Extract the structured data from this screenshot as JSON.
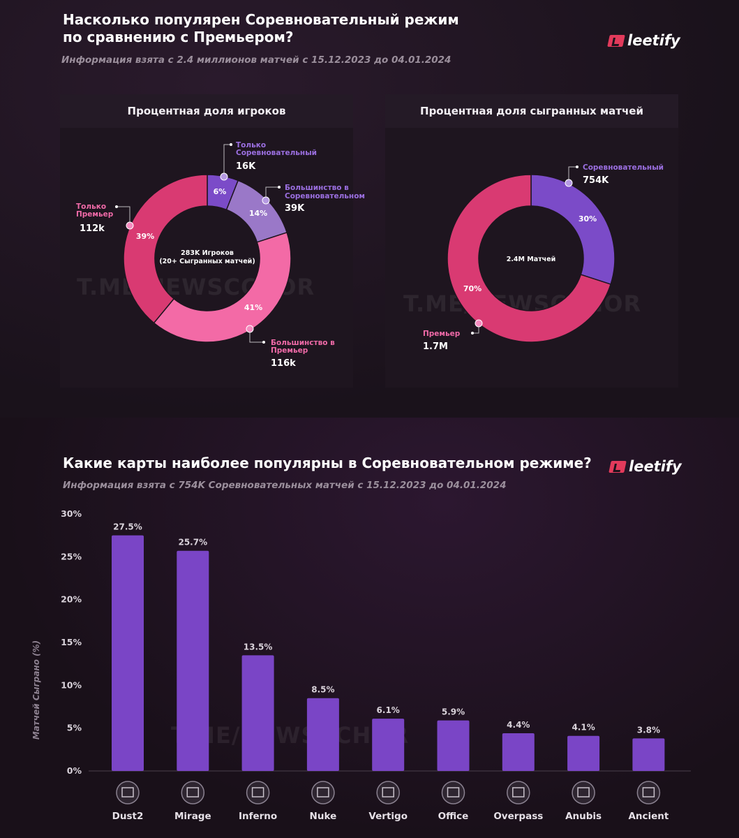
{
  "top": {
    "title_line1": "Насколько популярен Соревновательный режим",
    "title_line2": "по сравнению с Премьером?",
    "subtitle": "Информация взята с 2.4 миллионов матчей с 15.12.2023 до 04.01.2024",
    "logo": "leetify",
    "watermark": "T.ME/NEWSCCHOR"
  },
  "bottom": {
    "title": "Какие карты наиболее популярны в Соревновательном режиме?",
    "subtitle": "Информация взята с 754K Соревновательных матчей с 15.12.2023 до 04.01.2024",
    "logo": "leetify",
    "watermark": "T.ME/NEWSCCHOR"
  },
  "colors": {
    "purple": "#7b4bc8",
    "purple_light": "#9a78c8",
    "pink": "#e8457e",
    "pink_light": "#f36aa6",
    "pink_dark": "#c93063",
    "bar": "#7a45c6"
  },
  "chart_data": [
    {
      "type": "pie",
      "title": "Процентная доля игроков",
      "center_line1": "283K Игроков",
      "center_line2": "(20+ Сыгранных матчей)",
      "slices": [
        {
          "name": "Только Соревновательный",
          "name_line1": "Только",
          "name_line2": "Соревновательный",
          "percent": 6,
          "percent_label": "6%",
          "count": "16K",
          "color": "#7b4bc8"
        },
        {
          "name": "Большинство в Соревновательном",
          "name_line1": "Большинство в",
          "name_line2": "Соревновательном",
          "percent": 14,
          "percent_label": "14%",
          "count": "39K",
          "color": "#9a78c8"
        },
        {
          "name": "Большинство в Премьер",
          "name_line1": "Большинство в",
          "name_line2": "Премьер",
          "percent": 41,
          "percent_label": "41%",
          "count": "116k",
          "color": "#f36aa6"
        },
        {
          "name": "Только Премьер",
          "name_line1": "Только",
          "name_line2": "Премьер",
          "percent": 39,
          "percent_label": "39%",
          "count": "112k",
          "color": "#d93a72"
        }
      ]
    },
    {
      "type": "pie",
      "title": "Процентная доля сыгранных матчей",
      "center_line1": "2.4M Матчей",
      "slices": [
        {
          "name": "Соревновательный",
          "percent": 30,
          "percent_label": "30%",
          "count": "754K",
          "color": "#7b4bc8"
        },
        {
          "name": "Премьер",
          "percent": 70,
          "percent_label": "70%",
          "count": "1.7M",
          "color": "#d93a72"
        }
      ]
    },
    {
      "type": "bar",
      "ylabel": "Матчей Сыграно (%)",
      "ylim": [
        0,
        30
      ],
      "yticks": [
        "0%",
        "5%",
        "10%",
        "15%",
        "20%",
        "25%",
        "30%"
      ],
      "categories": [
        "Dust2",
        "Mirage",
        "Inferno",
        "Nuke",
        "Vertigo",
        "Office",
        "Overpass",
        "Anubis",
        "Ancient"
      ],
      "values": [
        27.5,
        25.7,
        13.5,
        8.5,
        6.1,
        5.9,
        4.4,
        4.1,
        3.8
      ],
      "value_labels": [
        "27.5%",
        "25.7%",
        "13.5%",
        "8.5%",
        "6.1%",
        "5.9%",
        "4.4%",
        "4.1%",
        "3.8%"
      ],
      "icons": [
        "dust2-icon",
        "mirage-icon",
        "inferno-icon",
        "nuke-icon",
        "vertigo-icon",
        "office-icon",
        "overpass-icon",
        "anubis-icon",
        "ancient-icon"
      ]
    }
  ]
}
